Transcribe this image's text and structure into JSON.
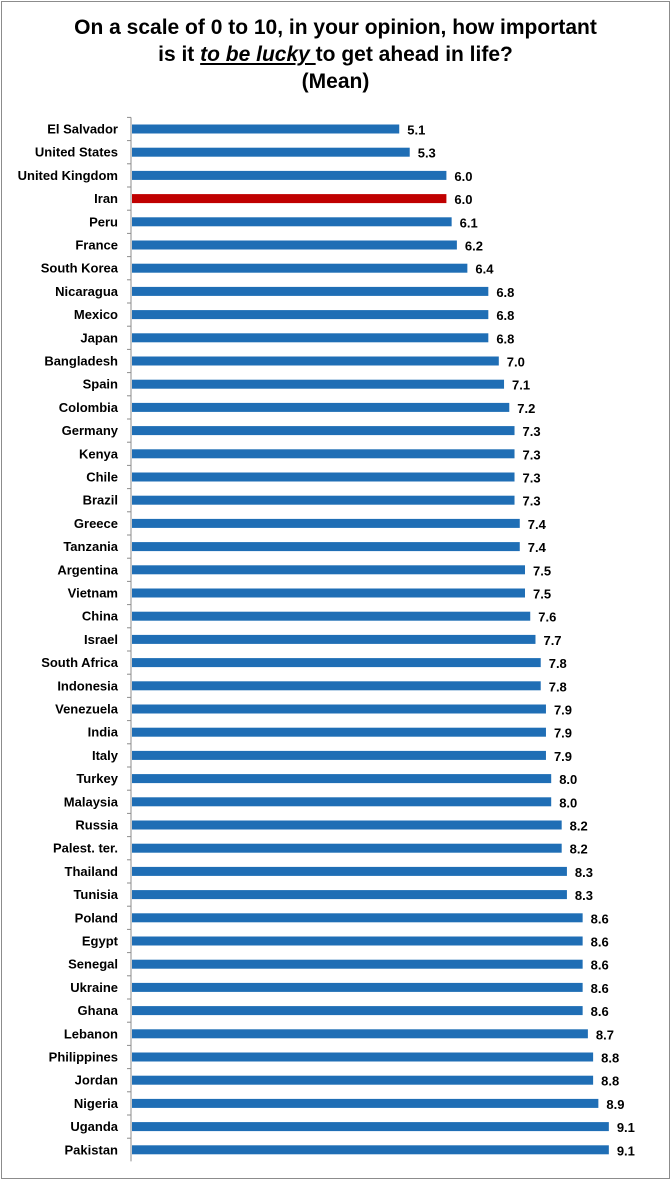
{
  "title": {
    "line1": "On a scale of 0 to 10, in your opinion, how important",
    "line2_pre": "is it ",
    "line2_emph": "to be lucky ",
    "line2_post": "to get ahead in life?",
    "line3": "(Mean)"
  },
  "colors": {
    "bar": "#1f6eb5",
    "highlight": "#c00000",
    "axis": "#8c8c8c"
  },
  "chart_data": {
    "type": "bar",
    "orientation": "horizontal",
    "title": "On a scale of 0 to 10, in your opinion, how important is it to be lucky to get ahead in life? (Mean)",
    "xlim": [
      0,
      10
    ],
    "grid": false,
    "highlight_category": "Iran",
    "categories": [
      "El Salvador",
      "United States",
      "United Kingdom",
      "Iran",
      "Peru",
      "France",
      "South Korea",
      "Nicaragua",
      "Mexico",
      "Japan",
      "Bangladesh",
      "Spain",
      "Colombia",
      "Germany",
      "Kenya",
      "Chile",
      "Brazil",
      "Greece",
      "Tanzania",
      "Argentina",
      "Vietnam",
      "China",
      "Israel",
      "South Africa",
      "Indonesia",
      "Venezuela",
      "India",
      "Italy",
      "Turkey",
      "Malaysia",
      "Russia",
      "Palest. ter.",
      "Thailand",
      "Tunisia",
      "Poland",
      "Egypt",
      "Senegal",
      "Ukraine",
      "Ghana",
      "Lebanon",
      "Philippines",
      "Jordan",
      "Nigeria",
      "Uganda",
      "Pakistan"
    ],
    "values": [
      5.1,
      5.3,
      6.0,
      6.0,
      6.1,
      6.2,
      6.4,
      6.8,
      6.8,
      6.8,
      7.0,
      7.1,
      7.2,
      7.3,
      7.3,
      7.3,
      7.3,
      7.4,
      7.4,
      7.5,
      7.5,
      7.6,
      7.7,
      7.8,
      7.8,
      7.9,
      7.9,
      7.9,
      8.0,
      8.0,
      8.2,
      8.2,
      8.3,
      8.3,
      8.6,
      8.6,
      8.6,
      8.6,
      8.6,
      8.7,
      8.8,
      8.8,
      8.9,
      9.1,
      9.1
    ],
    "labels": [
      "5.1",
      "5.3",
      "6.0",
      "6.0",
      "6.1",
      "6.2",
      "6.4",
      "6.8",
      "6.8",
      "6.8",
      "7.0",
      "7.1",
      "7.2",
      "7.3",
      "7.3",
      "7.3",
      "7.3",
      "7.4",
      "7.4",
      "7.5",
      "7.5",
      "7.6",
      "7.7",
      "7.8",
      "7.8",
      "7.9",
      "7.9",
      "7.9",
      "8.0",
      "8.0",
      "8.2",
      "8.2",
      "8.3",
      "8.3",
      "8.6",
      "8.6",
      "8.6",
      "8.6",
      "8.6",
      "8.7",
      "8.8",
      "8.8",
      "8.9",
      "9.1",
      "9.1"
    ]
  }
}
